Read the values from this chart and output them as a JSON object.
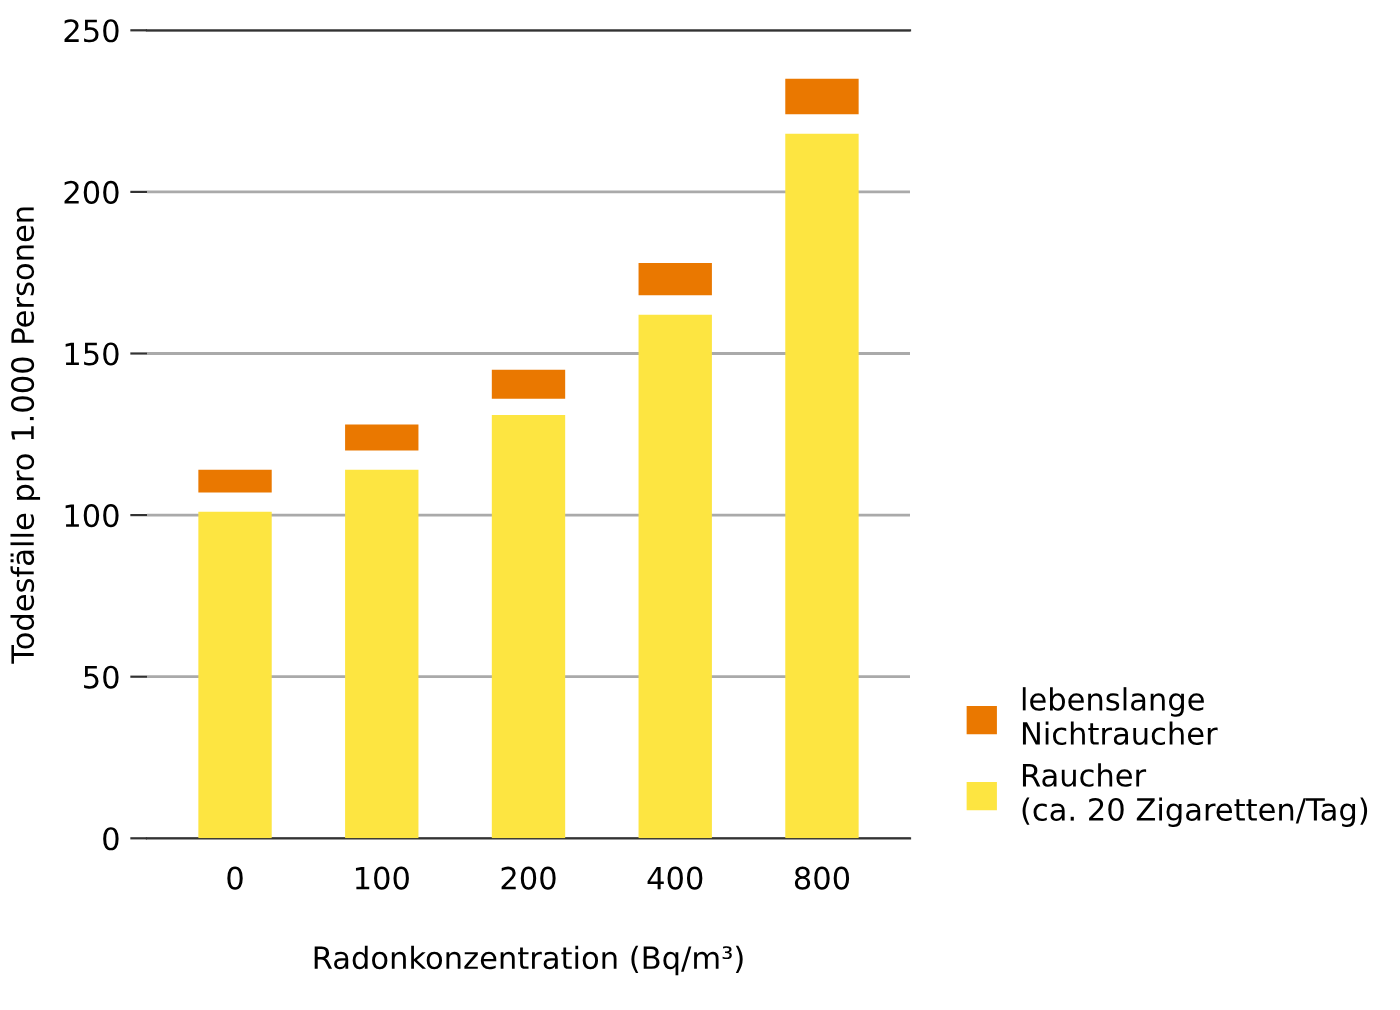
{
  "chart_data": {
    "type": "bar",
    "xlabel": "Radonkonzentration (Bq/m³)",
    "ylabel": "Todesfälle pro 1.000 Personen",
    "categories": [
      "0",
      "100",
      "200",
      "400",
      "800"
    ],
    "series": [
      {
        "name": "lebenslange\nNichtraucher",
        "color": "#ea7800",
        "values": [
          7,
          8,
          9,
          10,
          11
        ],
        "base": [
          107,
          120,
          136,
          168,
          224
        ]
      },
      {
        "name": "Raucher\n(ca. 20 Zigaretten/Tag)",
        "color": "#fde541",
        "values": [
          101,
          114,
          131,
          162,
          218
        ]
      }
    ],
    "ylim": [
      0,
      250
    ],
    "yticks": [
      0,
      50,
      100,
      150,
      200,
      250
    ],
    "grid": "y",
    "legend": "right"
  }
}
